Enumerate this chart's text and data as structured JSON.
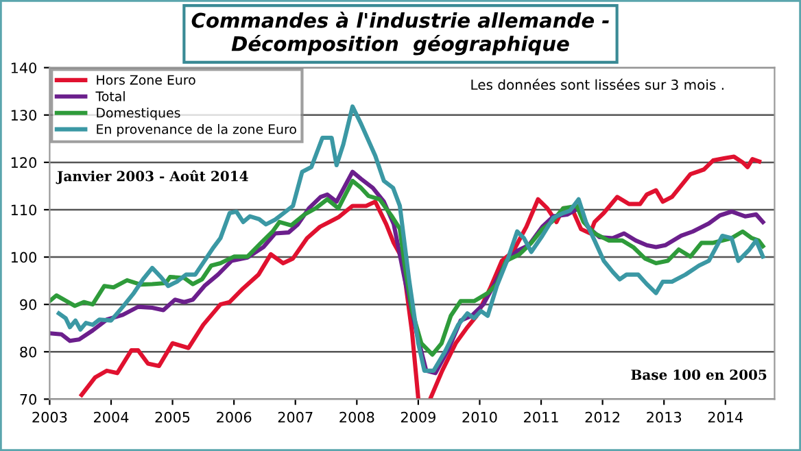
{
  "chart_data": {
    "type": "line",
    "title": "Commandes à l'industrie allemande -\nDécomposition  géographique",
    "annotations": [
      "Les données sont lissées sur 3 mois .",
      "Janvier 2003 - Août 2014",
      "Base 100 en 2005"
    ],
    "xlim": [
      2003,
      2014.8
    ],
    "xticks": [
      2003,
      2004,
      2005,
      2006,
      2007,
      2008,
      2009,
      2010,
      2011,
      2012,
      2013,
      2014
    ],
    "ylim": [
      70,
      140
    ],
    "yticks": [
      70,
      80,
      90,
      100,
      110,
      120,
      130,
      140
    ],
    "grid": "y",
    "legend": "top left",
    "line_style": "solid",
    "marker": "none",
    "series": [
      {
        "name": "Hors Zone Euro",
        "color": "#e0112f",
        "x": [
          2003.52,
          2003.74,
          2003.93,
          2004.1,
          2004.33,
          2004.44,
          2004.6,
          2004.78,
          2005.0,
          2005.26,
          2005.5,
          2005.78,
          2005.93,
          2006.15,
          2006.4,
          2006.6,
          2006.8,
          2006.96,
          2007.19,
          2007.4,
          2007.55,
          2007.7,
          2007.93,
          2008.15,
          2008.3,
          2008.48,
          2008.6,
          2008.74,
          2008.9,
          2009.0,
          2009.1,
          2009.2,
          2009.39,
          2009.61,
          2009.8,
          2009.95,
          2010.17,
          2010.36,
          2010.54,
          2010.76,
          2010.95,
          2011.1,
          2011.25,
          2011.36,
          2011.5,
          2011.65,
          2011.8,
          2011.87,
          2012.02,
          2012.24,
          2012.43,
          2012.61,
          2012.72,
          2012.87,
          2012.98,
          2013.13,
          2013.43,
          2013.65,
          2013.8,
          2013.99,
          2014.14,
          2014.29,
          2014.36,
          2014.44,
          2014.55
        ],
        "values": [
          70.9,
          74.6,
          76,
          75.5,
          80.3,
          80.3,
          77.5,
          77,
          81.8,
          80.8,
          85.7,
          90,
          90.5,
          93.4,
          96.3,
          100.6,
          98.7,
          99.7,
          104,
          106.4,
          107.4,
          108.4,
          110.8,
          110.8,
          111.7,
          106.9,
          103,
          99.7,
          84,
          70.2,
          null,
          70.2,
          76,
          81.8,
          85.2,
          87.6,
          93.4,
          99.2,
          101.1,
          106.4,
          112.2,
          110.3,
          107.4,
          110.3,
          110.3,
          105.9,
          105,
          107.4,
          109.3,
          112.7,
          111.2,
          111.2,
          113.2,
          114.1,
          111.7,
          112.7,
          117.5,
          118.5,
          120.4,
          120.9,
          121.2,
          119.9,
          119,
          120.7,
          120.2
        ]
      },
      {
        "name": "Total",
        "color": "#6b1f8c",
        "x": [
          2003.0,
          2003.19,
          2003.33,
          2003.48,
          2003.7,
          2003.93,
          2004.19,
          2004.44,
          2004.67,
          2004.85,
          2005.04,
          2005.19,
          2005.33,
          2005.52,
          2005.74,
          2005.96,
          2006.22,
          2006.48,
          2006.67,
          2006.89,
          2007.04,
          2007.22,
          2007.41,
          2007.52,
          2007.67,
          2007.93,
          2008.07,
          2008.26,
          2008.44,
          2008.6,
          2008.78,
          2008.98,
          2009.13,
          2009.28,
          2009.5,
          2009.69,
          2009.87,
          2010.06,
          2010.24,
          2010.43,
          2010.61,
          2010.8,
          2011.02,
          2011.2,
          2011.43,
          2011.61,
          2011.76,
          2011.95,
          2012.17,
          2012.35,
          2012.54,
          2012.72,
          2012.87,
          2013.02,
          2013.28,
          2013.47,
          2013.73,
          2013.91,
          2014.1,
          2014.32,
          2014.5,
          2014.61
        ],
        "values": [
          83.9,
          83.7,
          82.3,
          82.6,
          84.5,
          86.8,
          87.8,
          89.5,
          89.3,
          88.8,
          91,
          90.5,
          91,
          93.9,
          96.3,
          99.2,
          99.9,
          102.1,
          105,
          105.2,
          106.9,
          110.3,
          112.7,
          113.2,
          111.7,
          118,
          116.5,
          114.6,
          111.7,
          107,
          95.3,
          83.7,
          76,
          75.5,
          80.8,
          86.6,
          87.6,
          90,
          94.3,
          99,
          101.3,
          102.5,
          106.4,
          108.6,
          109,
          110.3,
          106.4,
          104.2,
          104,
          105,
          103.5,
          102.5,
          102.1,
          102.5,
          104.5,
          105.4,
          107.1,
          108.8,
          109.6,
          108.6,
          109,
          107.4
        ]
      },
      {
        "name": "Domestiques",
        "color": "#2e9b3a",
        "x": [
          2003.0,
          2003.11,
          2003.3,
          2003.41,
          2003.56,
          2003.7,
          2003.89,
          2004.04,
          2004.26,
          2004.48,
          2004.67,
          2004.89,
          2004.96,
          2005.19,
          2005.33,
          2005.48,
          2005.63,
          2005.78,
          2006.0,
          2006.22,
          2006.44,
          2006.63,
          2006.74,
          2006.93,
          2007.15,
          2007.33,
          2007.52,
          2007.7,
          2007.93,
          2008.07,
          2008.19,
          2008.37,
          2008.56,
          2008.7,
          2008.78,
          2008.9,
          2009.05,
          2009.23,
          2009.38,
          2009.53,
          2009.69,
          2009.91,
          2010.13,
          2010.28,
          2010.43,
          2010.65,
          2010.84,
          2011.02,
          2011.17,
          2011.36,
          2011.58,
          2011.69,
          2011.87,
          2012.1,
          2012.32,
          2012.5,
          2012.69,
          2012.87,
          2013.06,
          2013.24,
          2013.43,
          2013.61,
          2013.8,
          2014.1,
          2014.28,
          2014.43,
          2014.54,
          2014.61
        ],
        "values": [
          90.7,
          91.9,
          90.5,
          89.7,
          90.5,
          90,
          93.9,
          93.6,
          95.1,
          94.2,
          94.3,
          94.5,
          95.8,
          95.6,
          94.3,
          95.3,
          98.2,
          98.7,
          100.1,
          100.1,
          103,
          105.4,
          107.4,
          106.7,
          109,
          110.3,
          112.2,
          110.3,
          116.1,
          114.6,
          112.9,
          112.2,
          108.8,
          106,
          98.2,
          88.6,
          81.8,
          79.4,
          81.8,
          87.6,
          90.7,
          90.7,
          92.4,
          94.3,
          99.2,
          100.6,
          103,
          105.9,
          107.4,
          110.3,
          110.8,
          107.4,
          105,
          103.5,
          103.5,
          102.1,
          99.7,
          98.7,
          99.2,
          101.6,
          100.1,
          103,
          103,
          104,
          105.4,
          104,
          103.5,
          102.3
        ]
      },
      {
        "name": "En provenance de la zone Euro",
        "color": "#3b98a4",
        "x": [
          2003.15,
          2003.26,
          2003.33,
          2003.42,
          2003.5,
          2003.59,
          2003.7,
          2003.81,
          2004.0,
          2004.19,
          2004.37,
          2004.52,
          2004.67,
          2004.81,
          2004.93,
          2005.07,
          2005.22,
          2005.37,
          2005.52,
          2005.67,
          2005.78,
          2005.93,
          2006.04,
          2006.15,
          2006.26,
          2006.41,
          2006.52,
          2006.67,
          2006.81,
          2006.96,
          2007.11,
          2007.26,
          2007.44,
          2007.59,
          2007.67,
          2007.78,
          2007.93,
          2008.07,
          2008.3,
          2008.44,
          2008.59,
          2008.7,
          2008.85,
          2009.0,
          2009.1,
          2009.25,
          2009.43,
          2009.65,
          2009.8,
          2009.91,
          2010.02,
          2010.13,
          2010.28,
          2010.46,
          2010.61,
          2010.72,
          2010.84,
          2011.02,
          2011.2,
          2011.36,
          2011.47,
          2011.61,
          2011.73,
          2011.87,
          2012.02,
          2012.17,
          2012.28,
          2012.39,
          2012.58,
          2012.72,
          2012.87,
          2012.98,
          2013.13,
          2013.35,
          2013.57,
          2013.73,
          2013.95,
          2014.1,
          2014.21,
          2014.39,
          2014.5,
          2014.61
        ],
        "values": [
          88.1,
          87.1,
          85.2,
          86.6,
          84.7,
          86.1,
          85.7,
          86.8,
          86.6,
          89.5,
          92.4,
          95.3,
          97.7,
          95.8,
          93.9,
          94.8,
          96.3,
          96.3,
          99.2,
          102.1,
          104,
          109.3,
          109.6,
          107.4,
          108.6,
          108,
          106.9,
          107.9,
          109.3,
          110.8,
          118,
          119,
          125.2,
          125.2,
          119.4,
          123.8,
          131.8,
          128.1,
          121.4,
          116.1,
          114.6,
          110.8,
          95.3,
          81.8,
          76,
          76,
          79.9,
          85.7,
          88.1,
          87.1,
          88.6,
          87.6,
          93.9,
          99.7,
          105.4,
          104,
          101.1,
          104.5,
          108.3,
          109.3,
          109.8,
          112.2,
          107.4,
          103.5,
          99.2,
          96.8,
          95.3,
          96.3,
          96.3,
          94.3,
          92.4,
          94.8,
          94.8,
          96.3,
          98.2,
          99.2,
          104.5,
          104,
          99.2,
          101.6,
          103.5,
          100.1
        ]
      }
    ]
  }
}
